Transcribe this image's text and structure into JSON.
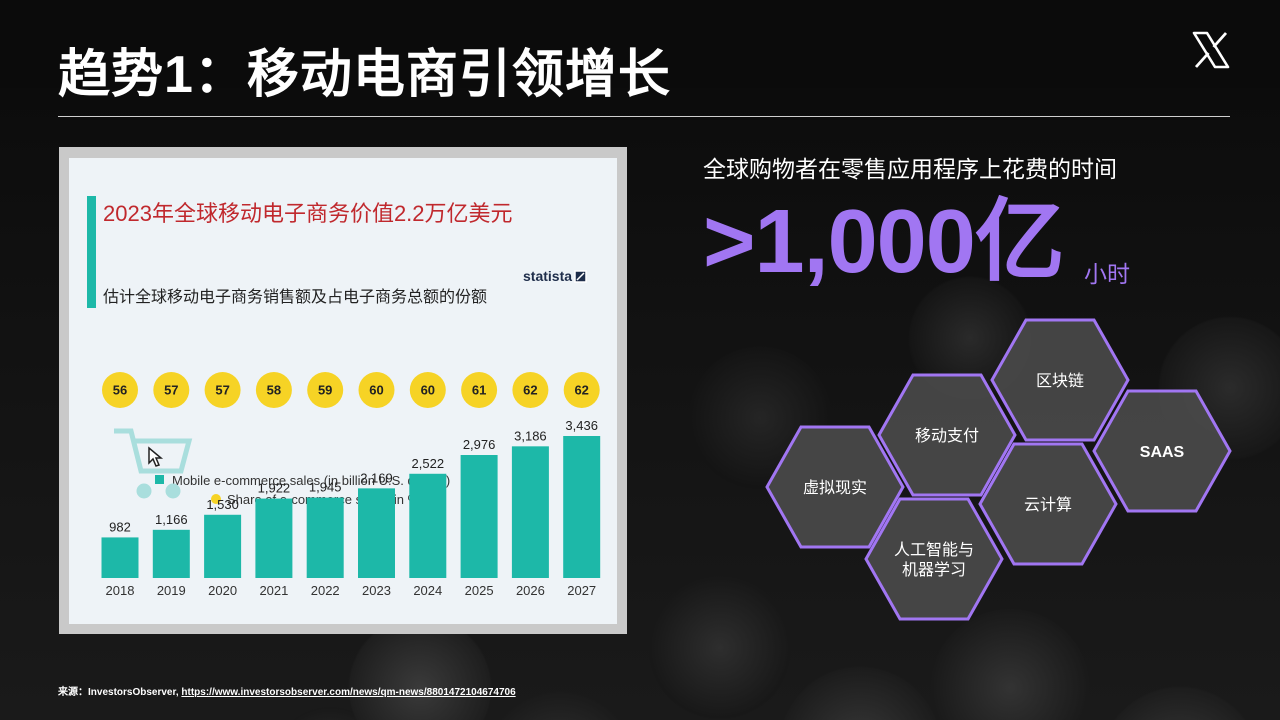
{
  "slide": {
    "title": "趋势1：移动电商引领增长",
    "source_prefix": "来源：InvestorsObserver, ",
    "source_url": "https://www.investorsobserver.com/news/qm-news/8801472104674706"
  },
  "stat": {
    "caption": "全球购物者在零售应用程序上花费的时间",
    "value": ">1,000亿",
    "unit": "小时"
  },
  "hexagons": [
    {
      "id": "blockchain",
      "label": "区块链"
    },
    {
      "id": "mobile-payment",
      "label": "移动支付"
    },
    {
      "id": "saas",
      "label": "SAAS"
    },
    {
      "id": "vr",
      "label": "虚拟现实"
    },
    {
      "id": "cloud",
      "label": "云计算"
    },
    {
      "id": "ai-ml",
      "label": "人工智能与",
      "label2": "机器学习"
    }
  ],
  "colors": {
    "accent_purple": "#a176f2",
    "bar_teal": "#1db8a8",
    "share_yellow": "#f6d325",
    "title_red": "#c0282d"
  },
  "chart_data": {
    "type": "bar",
    "title": "2023年全球移动电子商务价值2.2万亿美元",
    "subtitle": "估计全球移动电子商务销售额及占电子商务总额的份额",
    "brand": "statista",
    "categories": [
      "2018",
      "2019",
      "2020",
      "2021",
      "2022",
      "2023",
      "2024",
      "2025",
      "2026",
      "2027"
    ],
    "series": [
      {
        "name": "Mobile e-commerce sales (in billion U.S. dollars)",
        "values": [
          982,
          1166,
          1530,
          1922,
          1945,
          2169,
          2522,
          2976,
          3186,
          3436
        ]
      },
      {
        "name": "Share of e-commerce sales (in %)",
        "values": [
          56,
          57,
          57,
          58,
          59,
          60,
          60,
          61,
          62,
          62
        ]
      }
    ],
    "ylim": [
      0,
      3500
    ]
  }
}
